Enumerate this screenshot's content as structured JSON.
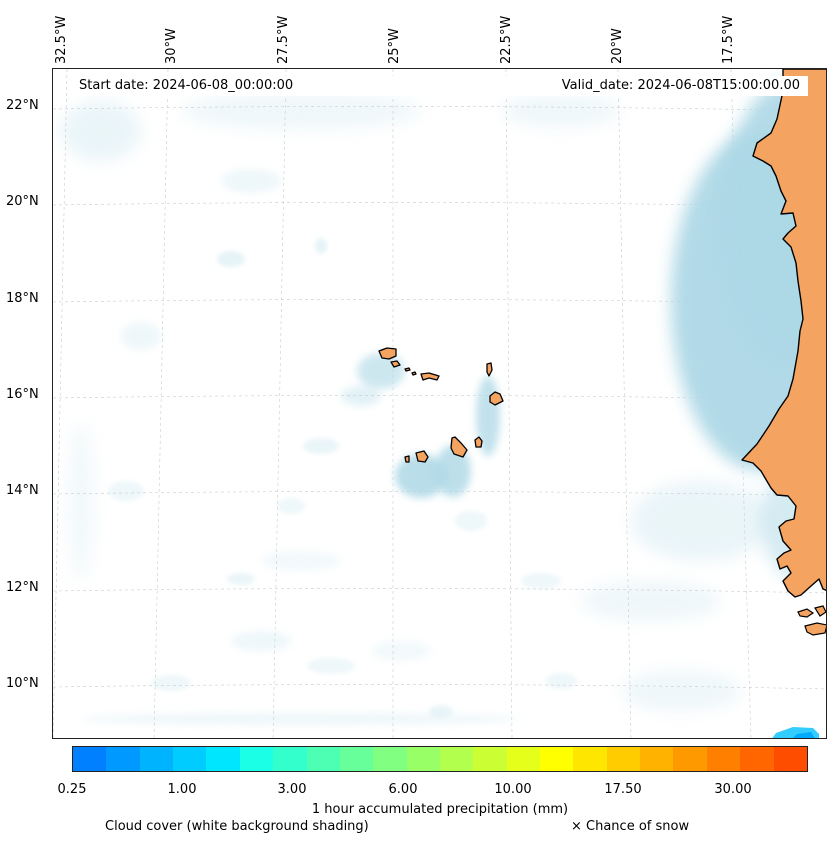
{
  "lon_labels": [
    "32.5°W",
    "30°W",
    "27.5°W",
    "25°W",
    "22.5°W",
    "20°W",
    "17.5°W"
  ],
  "lat_labels": [
    "22°N",
    "20°N",
    "18°N",
    "16°N",
    "14°N",
    "12°N",
    "10°N"
  ],
  "header": {
    "start_date": "Start date: 2024-06-08_00:00:00",
    "valid_date": "Valid_date: 2024-06-08T15:00:00.00"
  },
  "colorbar": {
    "title": "1 hour accumulated precipitation (mm)",
    "ticks": [
      "0.25",
      "1.00",
      "3.00",
      "6.00",
      "10.00",
      "17.50",
      "30.00"
    ],
    "colors": [
      "#0080ff",
      "#0099ff",
      "#00b3ff",
      "#00ccff",
      "#00e6ff",
      "#1affe6",
      "#33ffcc",
      "#4dffb3",
      "#66ff99",
      "#80ff80",
      "#99ff66",
      "#b3ff4d",
      "#ccff33",
      "#e6ff1a",
      "#ffff00",
      "#ffe600",
      "#ffcc00",
      "#ffb300",
      "#ff9900",
      "#ff8000",
      "#ff6600",
      "#ff4d00"
    ]
  },
  "legend": {
    "cloud": "Cloud cover (white background shading)",
    "snow": "× Chance of snow"
  },
  "colors": {
    "land": "#f4a460",
    "cloud": "#add8e6",
    "coastline": "#000000",
    "grid": "#cccccc"
  }
}
